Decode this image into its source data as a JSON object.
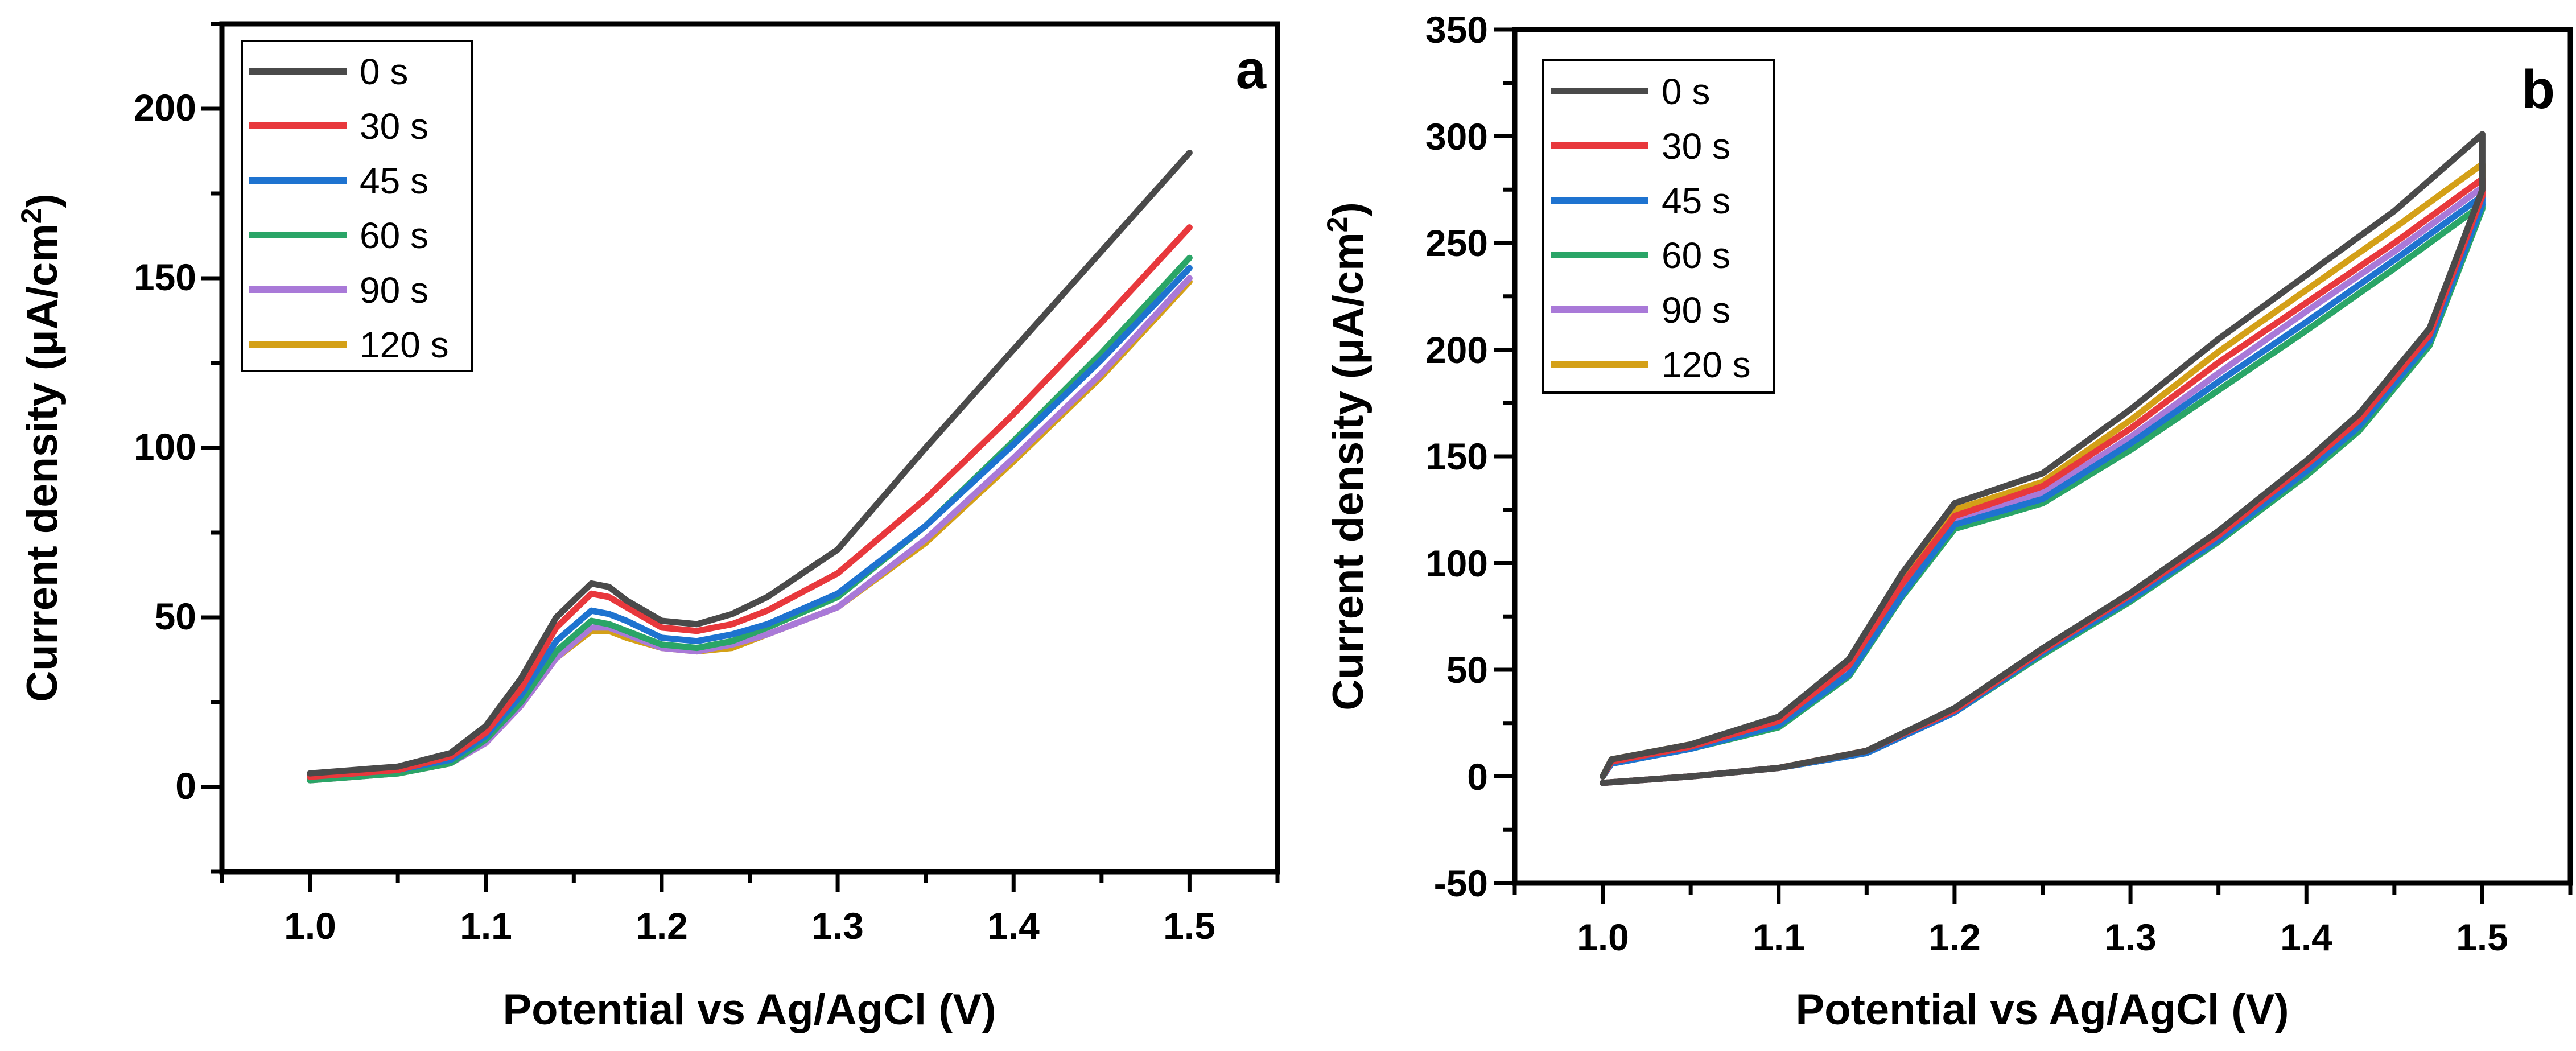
{
  "chart_data": [
    {
      "type": "line",
      "panel_label": "a",
      "xlabel": "Potential vs Ag/AgCl (V)",
      "ylabel_main": "Current density (μA/cm",
      "ylabel_sup": "2",
      "ylabel_close": ")",
      "xlim": [
        0.95,
        1.55
      ],
      "ylim": [
        -25,
        225
      ],
      "xticks": [
        1.0,
        1.1,
        1.2,
        1.3,
        1.4,
        1.5
      ],
      "xtick_labels": [
        "1.0",
        "1.1",
        "1.2",
        "1.3",
        "1.4",
        "1.5"
      ],
      "yticks": [
        0,
        50,
        100,
        150,
        200
      ],
      "ytick_labels": [
        "0",
        "50",
        "100",
        "150",
        "200"
      ],
      "legend_position": "top-left",
      "series": [
        {
          "name": "0 s",
          "color": "#4a4a4a",
          "x": [
            1.0,
            1.05,
            1.08,
            1.1,
            1.12,
            1.14,
            1.16,
            1.17,
            1.18,
            1.2,
            1.22,
            1.24,
            1.26,
            1.3,
            1.35,
            1.4,
            1.45,
            1.5
          ],
          "y": [
            4,
            6,
            10,
            18,
            32,
            50,
            60,
            59,
            55,
            49,
            48,
            51,
            56,
            70,
            100,
            129,
            158,
            187
          ]
        },
        {
          "name": "30 s",
          "color": "#e8383c",
          "x": [
            1.0,
            1.05,
            1.08,
            1.1,
            1.12,
            1.14,
            1.16,
            1.17,
            1.18,
            1.2,
            1.22,
            1.24,
            1.26,
            1.3,
            1.35,
            1.4,
            1.45,
            1.5
          ],
          "y": [
            3,
            5,
            9,
            16,
            29,
            47,
            57,
            56,
            53,
            47,
            46,
            48,
            52,
            63,
            85,
            110,
            137,
            165
          ]
        },
        {
          "name": "45 s",
          "color": "#1e73d0",
          "x": [
            1.0,
            1.05,
            1.08,
            1.1,
            1.12,
            1.14,
            1.16,
            1.17,
            1.18,
            1.2,
            1.22,
            1.24,
            1.26,
            1.3,
            1.35,
            1.4,
            1.45,
            1.5
          ],
          "y": [
            3,
            5,
            8,
            15,
            27,
            43,
            52,
            51,
            49,
            44,
            43,
            45,
            48,
            57,
            77,
            101,
            126,
            153
          ]
        },
        {
          "name": "60 s",
          "color": "#2aa567",
          "x": [
            1.0,
            1.05,
            1.08,
            1.1,
            1.12,
            1.14,
            1.16,
            1.17,
            1.18,
            1.2,
            1.22,
            1.24,
            1.26,
            1.3,
            1.35,
            1.4,
            1.45,
            1.5
          ],
          "y": [
            2,
            4,
            7,
            14,
            25,
            40,
            49,
            48,
            46,
            42,
            41,
            43,
            47,
            56,
            77,
            102,
            128,
            156
          ]
        },
        {
          "name": "90 s",
          "color": "#a979d8",
          "x": [
            1.0,
            1.05,
            1.08,
            1.1,
            1.12,
            1.14,
            1.16,
            1.17,
            1.18,
            1.2,
            1.22,
            1.24,
            1.26,
            1.3,
            1.35,
            1.4,
            1.45,
            1.5
          ],
          "y": [
            2,
            4,
            7,
            13,
            24,
            38,
            47,
            47,
            45,
            41,
            40,
            42,
            45,
            53,
            73,
            97,
            122,
            150
          ]
        },
        {
          "name": "120 s",
          "color": "#d4a017",
          "x": [
            1.0,
            1.05,
            1.08,
            1.1,
            1.12,
            1.14,
            1.16,
            1.17,
            1.18,
            1.2,
            1.22,
            1.24,
            1.26,
            1.3,
            1.35,
            1.4,
            1.45,
            1.5
          ],
          "y": [
            2,
            4,
            7,
            13,
            24,
            38,
            46,
            46,
            44,
            41,
            40,
            41,
            45,
            53,
            72,
            96,
            121,
            149
          ]
        }
      ]
    },
    {
      "type": "line",
      "panel_label": "b",
      "xlabel": "Potential vs Ag/AgCl (V)",
      "ylabel_main": "Current density (μA/cm",
      "ylabel_sup": "2",
      "ylabel_close": ")",
      "xlim": [
        0.95,
        1.55
      ],
      "ylim": [
        -50,
        350
      ],
      "xticks": [
        1.0,
        1.1,
        1.2,
        1.3,
        1.4,
        1.5
      ],
      "xtick_labels": [
        "1.0",
        "1.1",
        "1.2",
        "1.3",
        "1.4",
        "1.5"
      ],
      "yticks": [
        -50,
        0,
        50,
        100,
        150,
        200,
        250,
        300,
        350
      ],
      "ytick_labels": [
        "-50",
        "0",
        "50",
        "100",
        "150",
        "200",
        "250",
        "300",
        "350"
      ],
      "legend_position": "top-left",
      "series": [
        {
          "name": "0 s",
          "color": "#4a4a4a",
          "x": [
            1.0,
            1.005,
            1.05,
            1.1,
            1.14,
            1.17,
            1.2,
            1.25,
            1.3,
            1.35,
            1.4,
            1.45,
            1.5,
            1.5,
            1.47,
            1.43,
            1.4,
            1.35,
            1.3,
            1.25,
            1.2,
            1.15,
            1.1,
            1.05,
            1.0
          ],
          "y": [
            0,
            8,
            15,
            28,
            55,
            95,
            128,
            142,
            172,
            205,
            235,
            265,
            301,
            275,
            210,
            170,
            148,
            115,
            86,
            60,
            32,
            12,
            4,
            0,
            -3
          ]
        },
        {
          "name": "30 s",
          "color": "#e8383c",
          "x": [
            1.0,
            1.005,
            1.05,
            1.1,
            1.14,
            1.17,
            1.2,
            1.25,
            1.3,
            1.35,
            1.4,
            1.45,
            1.5,
            1.5,
            1.47,
            1.43,
            1.4,
            1.35,
            1.3,
            1.25,
            1.2,
            1.15,
            1.1,
            1.05,
            1.0
          ],
          "y": [
            0,
            7,
            14,
            26,
            52,
            90,
            122,
            136,
            163,
            194,
            222,
            250,
            280,
            272,
            207,
            167,
            146,
            113,
            85,
            59,
            31,
            12,
            4,
            0,
            -3
          ]
        },
        {
          "name": "45 s",
          "color": "#1e73d0",
          "x": [
            1.0,
            1.005,
            1.05,
            1.1,
            1.14,
            1.17,
            1.2,
            1.25,
            1.3,
            1.35,
            1.4,
            1.45,
            1.5,
            1.5,
            1.47,
            1.43,
            1.4,
            1.35,
            1.3,
            1.25,
            1.2,
            1.15,
            1.1,
            1.05,
            1.0
          ],
          "y": [
            0,
            6,
            13,
            24,
            48,
            85,
            118,
            130,
            156,
            185,
            213,
            242,
            272,
            268,
            204,
            164,
            143,
            111,
            83,
            58,
            30,
            11,
            4,
            0,
            -3
          ]
        },
        {
          "name": "60 s",
          "color": "#2aa567",
          "x": [
            1.0,
            1.005,
            1.05,
            1.1,
            1.14,
            1.17,
            1.2,
            1.25,
            1.3,
            1.35,
            1.4,
            1.45,
            1.5,
            1.5,
            1.47,
            1.43,
            1.4,
            1.35,
            1.3,
            1.25,
            1.2,
            1.15,
            1.1,
            1.05,
            1.0
          ],
          "y": [
            0,
            6,
            13,
            23,
            47,
            84,
            116,
            128,
            153,
            181,
            209,
            238,
            268,
            266,
            202,
            162,
            141,
            110,
            82,
            57,
            30,
            11,
            4,
            0,
            -3
          ]
        },
        {
          "name": "90 s",
          "color": "#a979d8",
          "x": [
            1.0,
            1.005,
            1.05,
            1.1,
            1.14,
            1.17,
            1.2,
            1.25,
            1.3,
            1.35,
            1.4,
            1.45,
            1.5,
            1.5,
            1.47,
            1.43,
            1.4,
            1.35,
            1.3,
            1.25,
            1.2,
            1.15,
            1.1,
            1.05,
            1.0
          ],
          "y": [
            0,
            7,
            13,
            25,
            50,
            88,
            120,
            133,
            159,
            189,
            218,
            246,
            276,
            270,
            205,
            165,
            144,
            112,
            84,
            58,
            30,
            11,
            4,
            0,
            -3
          ]
        },
        {
          "name": "120 s",
          "color": "#d4a017",
          "x": [
            1.0,
            1.005,
            1.05,
            1.1,
            1.14,
            1.17,
            1.2,
            1.25,
            1.3,
            1.35,
            1.4,
            1.45,
            1.5,
            1.5,
            1.47,
            1.43,
            1.4,
            1.35,
            1.3,
            1.25,
            1.2,
            1.15,
            1.1,
            1.05,
            1.0
          ],
          "y": [
            0,
            8,
            15,
            27,
            54,
            93,
            125,
            138,
            167,
            199,
            228,
            257,
            287,
            273,
            208,
            168,
            147,
            114,
            85,
            59,
            31,
            12,
            4,
            0,
            -3
          ]
        }
      ]
    }
  ]
}
